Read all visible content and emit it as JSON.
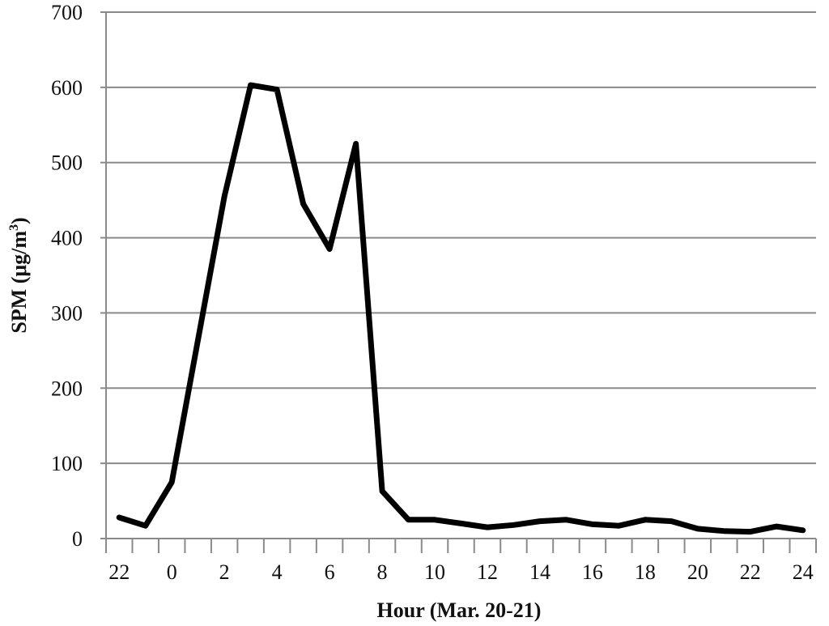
{
  "chart_data": {
    "type": "line",
    "title": "",
    "xlabel": "Hour (Mar. 20-21)",
    "ylabel": "SPM (μg/m³)",
    "ylabel_base": "SPM (μg/m",
    "ylabel_sup": "3",
    "ylabel_close": ")",
    "ylim": [
      0,
      700
    ],
    "yticks": [
      0,
      100,
      200,
      300,
      400,
      500,
      600,
      700
    ],
    "x_categories": [
      "22",
      "23",
      "0",
      "1",
      "2",
      "3",
      "4",
      "5",
      "6",
      "7",
      "8",
      "9",
      "10",
      "11",
      "12",
      "13",
      "14",
      "15",
      "16",
      "17",
      "18",
      "19",
      "20",
      "21",
      "22",
      "23",
      "24"
    ],
    "x_tick_labels": [
      "22",
      "0",
      "2",
      "4",
      "6",
      "8",
      "10",
      "12",
      "14",
      "16",
      "18",
      "20",
      "22",
      "24"
    ],
    "grid": true,
    "legend": "none",
    "series": [
      {
        "color": "#000000",
        "values": [
          28,
          17,
          75,
          265,
          455,
          603,
          597,
          445,
          385,
          525,
          63,
          25,
          25,
          20,
          15,
          18,
          23,
          25,
          19,
          17,
          25,
          23,
          13,
          10,
          9,
          16,
          11
        ]
      }
    ]
  }
}
